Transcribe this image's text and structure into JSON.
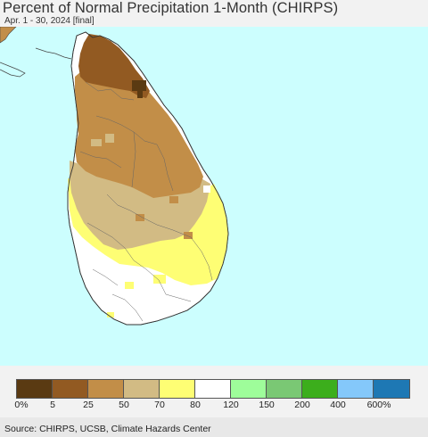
{
  "title": "Percent of Normal Precipitation 1-Month (CHIRPS)",
  "subtitle": "Apr. 1 - 30, 2024 [final]",
  "legend": {
    "colors": [
      "#5a3a12",
      "#925a22",
      "#c28e48",
      "#d2bb84",
      "#fefe74",
      "#ffffff",
      "#9efd9a",
      "#7ac874",
      "#3cae1c",
      "#84c8fa",
      "#1e78b4"
    ],
    "labels": [
      "0%",
      "5",
      "25",
      "50",
      "70",
      "80",
      "120",
      "150",
      "200",
      "400",
      "600%"
    ]
  },
  "source": "Source: CHIRPS, UCSB, Climate Hazards Center",
  "map_colors": {
    "ocean": "#ccfefe",
    "dark_brown": "#5a3a12",
    "brown": "#925a22",
    "tan": "#c28e48",
    "khaki": "#d2bb84",
    "yellow": "#fefe74",
    "white": "#ffffff",
    "india_coast": "#c28e48"
  }
}
